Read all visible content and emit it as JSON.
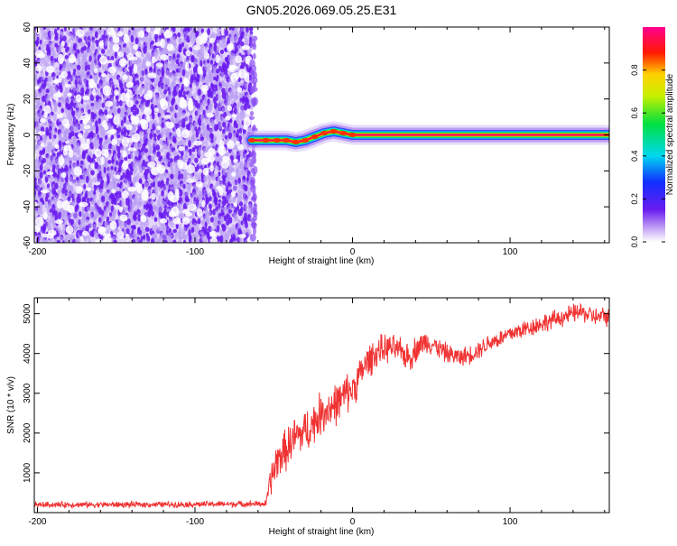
{
  "figure": {
    "title": "GN05.2026.069.05.25.E31"
  },
  "colors": {
    "snr_line": "#f03232",
    "spectrogram_noise": "#7a2cf0",
    "axis": "#000000"
  },
  "chart_data": [
    {
      "type": "heatmap",
      "title": "GN05.2026.069.05.25.E31",
      "xlabel": "Height of straight line (km)",
      "ylabel": "Frequency (Hz)",
      "xlim": [
        -202,
        163
      ],
      "ylim": [
        -60,
        60
      ],
      "x_ticks": [
        -200,
        -100,
        0,
        100
      ],
      "y_ticks": [
        -60,
        -40,
        -20,
        0,
        20,
        40,
        60
      ],
      "grid": false,
      "colorbar": {
        "label": "Normalized spectral amplitude",
        "range": [
          0,
          1
        ],
        "ticks": [
          0.0,
          0.2,
          0.4,
          0.6,
          0.8
        ],
        "tick_labels": [
          "0.0",
          "0.2",
          "0.4",
          "0.6",
          "0.8"
        ],
        "colormap": "rainbow (purple-blue-cyan-green-yellow-red-magenta)"
      },
      "noise_region_x": [
        -202,
        -64
      ],
      "noise_amplitude_range": [
        0.05,
        0.25
      ],
      "signal_ridge": {
        "x": [
          -64,
          -55,
          -48,
          -42,
          -36,
          -30,
          -24,
          -18,
          -12,
          -6,
          0,
          20,
          60,
          100,
          140,
          163
        ],
        "frequency": [
          -3,
          -3,
          -3,
          -3,
          -4,
          -3,
          -1,
          1,
          2,
          1,
          0,
          0,
          0,
          0,
          0,
          0
        ],
        "peak_amplitude": 1.0
      }
    },
    {
      "type": "line",
      "xlabel": "Height of straight line (km)",
      "ylabel": "SNR (10 * v/v)",
      "xlim": [
        -202,
        163
      ],
      "ylim": [
        0,
        5400
      ],
      "x_ticks": [
        -200,
        -100,
        0,
        100
      ],
      "y_ticks": [
        1000,
        2000,
        3000,
        4000,
        5000
      ],
      "grid": false,
      "series": [
        {
          "color": "#f03232",
          "x": [
            -202,
            -150,
            -100,
            -55,
            -52,
            -48,
            -44,
            -40,
            -36,
            -32,
            -28,
            -24,
            -20,
            -16,
            -12,
            -8,
            -4,
            0,
            4,
            8,
            12,
            16,
            20,
            24,
            28,
            32,
            36,
            40,
            44,
            48,
            52,
            56,
            60,
            64,
            68,
            72,
            76,
            80,
            84,
            88,
            92,
            96,
            100,
            104,
            108,
            112,
            116,
            120,
            124,
            128,
            132,
            136,
            140,
            144,
            148,
            152,
            156,
            160,
            163
          ],
          "values": [
            200,
            200,
            210,
            220,
            800,
            1300,
            1500,
            1700,
            1900,
            2000,
            2100,
            2300,
            2500,
            2600,
            2700,
            2800,
            3000,
            3100,
            3400,
            3700,
            3900,
            4050,
            4100,
            4150,
            4100,
            4000,
            3900,
            4100,
            4250,
            4300,
            4200,
            4100,
            4000,
            3950,
            3900,
            3950,
            4000,
            4100,
            4200,
            4300,
            4350,
            4400,
            4500,
            4550,
            4600,
            4650,
            4700,
            4750,
            4800,
            4850,
            4900,
            4950,
            5000,
            5050,
            5000,
            4950,
            4900,
            4950,
            4900
          ],
          "noise_amplitude": [
            90,
            90,
            90,
            90,
            500,
            600,
            600,
            650,
            650,
            650,
            650,
            650,
            650,
            650,
            650,
            600,
            600,
            550,
            550,
            500,
            500,
            450,
            450,
            400,
            400,
            400,
            450,
            400,
            350,
            350,
            300,
            300,
            300,
            280,
            280,
            280,
            280,
            280,
            280,
            280,
            280,
            280,
            280,
            280,
            280,
            280,
            280,
            280,
            280,
            280,
            280,
            280,
            280,
            280,
            280,
            280,
            280,
            280,
            280
          ]
        }
      ]
    }
  ]
}
